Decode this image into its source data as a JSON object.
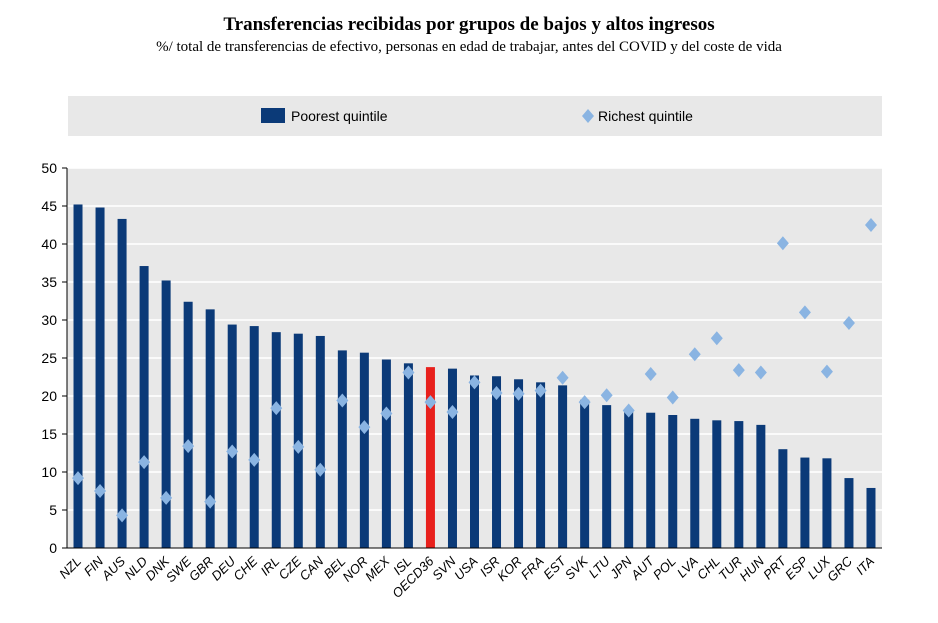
{
  "title": "Transferencias recibidas por grupos de bajos y altos ingresos",
  "subtitle": "%/ total de transferencias de efectivo, personas en edad de trabajar, antes del COVID y del coste de vida",
  "colors": {
    "poorest": "#0b3a78",
    "highlight": "#e8201c",
    "richest": "#8ab4e2",
    "plot_bg": "#e8e8e8",
    "gridline": "#ffffff"
  },
  "chart_data": {
    "type": "bar",
    "ylim": [
      0,
      50
    ],
    "yticks": [
      0,
      5,
      10,
      15,
      20,
      25,
      30,
      35,
      40,
      45,
      50
    ],
    "grid": true,
    "legend_position": "top",
    "highlight_category": "OECD36",
    "categories": [
      "NZL",
      "FIN",
      "AUS",
      "NLD",
      "DNK",
      "SWE",
      "GBR",
      "DEU",
      "CHE",
      "IRL",
      "CZE",
      "CAN",
      "BEL",
      "NOR",
      "MEX",
      "ISL",
      "OECD36",
      "SVN",
      "USA",
      "ISR",
      "KOR",
      "FRA",
      "EST",
      "SVK",
      "LTU",
      "JPN",
      "AUT",
      "POL",
      "LVA",
      "CHL",
      "TUR",
      "HUN",
      "PRT",
      "ESP",
      "LUX",
      "GRC",
      "ITA"
    ],
    "series": [
      {
        "name": "Poorest quintile",
        "marker": "bar",
        "values": [
          45.2,
          44.8,
          43.3,
          37.1,
          35.2,
          32.4,
          31.4,
          29.4,
          29.2,
          28.4,
          28.2,
          27.9,
          26.0,
          25.7,
          24.8,
          24.3,
          23.8,
          23.6,
          22.7,
          22.6,
          22.2,
          21.8,
          21.4,
          19.5,
          18.8,
          18.2,
          17.8,
          17.5,
          17.0,
          16.8,
          16.7,
          16.2,
          13.0,
          11.9,
          11.8,
          9.2,
          7.9
        ]
      },
      {
        "name": "Richest quintile",
        "marker": "diamond",
        "values": [
          9.2,
          7.5,
          4.3,
          11.3,
          6.6,
          13.4,
          6.1,
          12.7,
          11.6,
          18.4,
          13.3,
          10.3,
          19.4,
          15.9,
          17.7,
          23.1,
          19.2,
          17.9,
          21.8,
          20.4,
          20.3,
          20.7,
          22.4,
          19.2,
          20.1,
          18.1,
          22.9,
          19.8,
          25.5,
          27.6,
          23.4,
          23.1,
          40.1,
          31.0,
          23.2,
          29.6,
          42.5
        ]
      }
    ]
  }
}
